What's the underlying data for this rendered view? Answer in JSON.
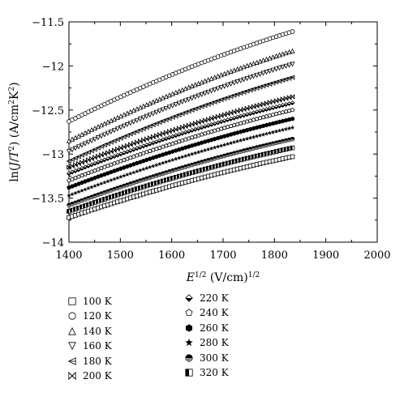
{
  "chart_data": {
    "type": "scatter",
    "title": "",
    "xlabel": "E^{1/2} (V/cm)^{1/2}",
    "ylabel": "ln(J/T^2) (A/cm^2K^2)",
    "xlim": [
      1400,
      2000
    ],
    "ylim": [
      -14,
      -11.5
    ],
    "x_ticks": [
      1400,
      1500,
      1600,
      1700,
      1800,
      1900,
      2000
    ],
    "y_ticks": [
      -14,
      -13.5,
      -13,
      -12.5,
      -12,
      -11.5
    ],
    "x_tick_labels": [
      "1400",
      "1500",
      "1600",
      "1700",
      "1800",
      "1900",
      "2000"
    ],
    "y_tick_labels": [
      "−14",
      "−13.5",
      "−13",
      "−12.5",
      "−12",
      "−11.5"
    ],
    "grid": false,
    "legend_position": "below",
    "x_range": [
      1400,
      1835
    ],
    "series": [
      {
        "name": "100 K",
        "marker": "square",
        "values": [
          -13.72,
          -13.03
        ]
      },
      {
        "name": "120 K",
        "marker": "circle",
        "values": [
          -12.63,
          -11.61
        ]
      },
      {
        "name": "140 K",
        "marker": "triangle-up",
        "values": [
          -12.85,
          -11.83
        ]
      },
      {
        "name": "160 K",
        "marker": "triangle-down",
        "values": [
          -12.97,
          -11.98
        ]
      },
      {
        "name": "180 K",
        "marker": "triangle-left-bar",
        "values": [
          -13.08,
          -12.13
        ]
      },
      {
        "name": "200 K",
        "marker": "bowtie-x",
        "values": [
          -13.15,
          -12.35
        ]
      },
      {
        "name": "220 K",
        "marker": "diamond-half",
        "values": [
          -13.22,
          -12.42
        ]
      },
      {
        "name": "240 K",
        "marker": "pentagon",
        "values": [
          -13.3,
          -12.5
        ]
      },
      {
        "name": "260 K",
        "marker": "hexagon-half",
        "values": [
          -13.38,
          -12.6
        ]
      },
      {
        "name": "280 K",
        "marker": "star",
        "values": [
          -13.47,
          -12.7
        ]
      },
      {
        "name": "300 K",
        "marker": "circle-half",
        "values": [
          -13.58,
          -12.83
        ]
      },
      {
        "name": "320 K",
        "marker": "square-half",
        "values": [
          -13.65,
          -12.93
        ]
      }
    ]
  },
  "legend_left": [
    "100 K",
    "120 K",
    "140 K",
    "160 K",
    "180 K",
    "200 K"
  ],
  "legend_right": [
    "220 K",
    "240 K",
    "260 K",
    "280 K",
    "300 K",
    "320 K"
  ]
}
